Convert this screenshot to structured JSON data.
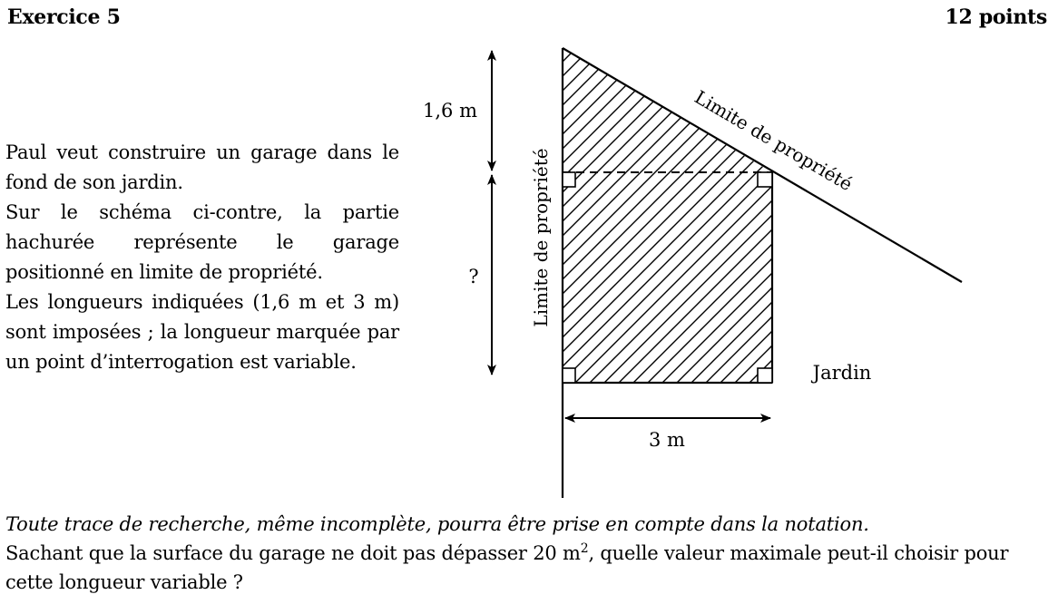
{
  "header": {
    "title": "Exercice 5",
    "points": "12 points"
  },
  "intro": {
    "p1": "Paul veut construire un garage dans le fond de son jardin.",
    "p2": "Sur le schéma ci-contre, la partie hachurée représente le garage positionné en limite de propriété.",
    "p3": "Les longueurs indiquées (1,6 m et 3 m) sont imposées ; la longueur marquée par un point d’interrogation est variable."
  },
  "figure": {
    "label_top_dim": "1,6 m",
    "label_question": "?",
    "label_vertical_limit": "Limite de propriété",
    "label_slanted_limit": "Limite de propriété",
    "label_garden": "Jardin",
    "label_width": "3 m"
  },
  "footer": {
    "note": "Toute trace de recherche, même incomplète, pourra être prise en compte dans la notation.",
    "question_start": "Sachant que la surface du garage ne doit pas dépasser 20 m",
    "question_sup": "2",
    "question_end": ", quelle valeur maximale peut-il choisir pour cette longueur variable ?"
  }
}
